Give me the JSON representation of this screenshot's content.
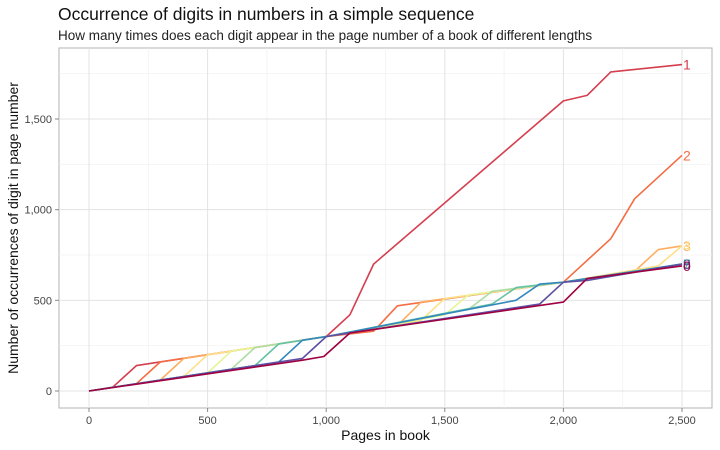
{
  "chart_data": {
    "type": "line",
    "title": "Occurrence of digits in numbers in a simple sequence",
    "subtitle": "How many times does each digit appear in the page number of a book of different lengths",
    "xlabel": "Pages in book",
    "ylabel": "Number of occurrences of digit in page number",
    "xlim": [
      0,
      2500
    ],
    "ylim": [
      0,
      1800
    ],
    "x_ticks": [
      0,
      500,
      1000,
      1500,
      2000,
      2500
    ],
    "x_tick_labels": [
      "0",
      "500",
      "1,000",
      "1,500",
      "2,000",
      "2,500"
    ],
    "y_ticks": [
      0,
      500,
      1000,
      1500
    ],
    "y_tick_labels": [
      "0",
      "500",
      "1,000",
      "1,500"
    ],
    "grid": true,
    "legend": "none (labels at line ends)",
    "series": [
      {
        "name": "1",
        "color": "#d53e4f",
        "x": [
          0,
          100,
          200,
          1000,
          1100,
          1200,
          2000,
          2100,
          2200,
          2500
        ],
        "y": [
          0,
          21,
          140,
          300,
          420,
          700,
          1600,
          1630,
          1760,
          1800
        ]
      },
      {
        "name": "2",
        "color": "#f46d43",
        "x": [
          0,
          200,
          300,
          1000,
          1200,
          1300,
          2000,
          2200,
          2300,
          2500
        ],
        "y": [
          0,
          40,
          160,
          300,
          330,
          470,
          600,
          840,
          1060,
          1300
        ]
      },
      {
        "name": "3",
        "color": "#fdae61",
        "x": [
          0,
          300,
          400,
          1000,
          1300,
          1400,
          2000,
          2300,
          2400,
          2500
        ],
        "y": [
          0,
          60,
          180,
          300,
          360,
          490,
          600,
          660,
          780,
          800
        ]
      },
      {
        "name": "4",
        "color": "#fee08b",
        "x": [
          0,
          400,
          500,
          1000,
          1400,
          1500,
          2000,
          2400,
          2500
        ],
        "y": [
          0,
          80,
          200,
          300,
          390,
          510,
          600,
          690,
          800
        ]
      },
      {
        "name": "5",
        "color": "#e6f598",
        "x": [
          0,
          500,
          600,
          1000,
          1500,
          1600,
          2000,
          2500
        ],
        "y": [
          0,
          100,
          220,
          300,
          420,
          530,
          600,
          700
        ]
      },
      {
        "name": "6",
        "color": "#abdda4",
        "x": [
          0,
          600,
          700,
          1000,
          1600,
          1700,
          2000,
          2500
        ],
        "y": [
          0,
          120,
          240,
          300,
          450,
          550,
          600,
          700
        ]
      },
      {
        "name": "7",
        "color": "#66c2a5",
        "x": [
          0,
          700,
          800,
          1000,
          1700,
          1800,
          2000,
          2500
        ],
        "y": [
          0,
          140,
          260,
          300,
          480,
          570,
          600,
          700
        ]
      },
      {
        "name": "8",
        "color": "#3288bd",
        "x": [
          0,
          800,
          900,
          1000,
          1800,
          1900,
          2000,
          2500
        ],
        "y": [
          0,
          160,
          280,
          300,
          500,
          590,
          600,
          700
        ]
      },
      {
        "name": "9",
        "color": "#5e4fa2",
        "x": [
          0,
          900,
          1000,
          1900,
          2000,
          2100,
          2500
        ],
        "y": [
          0,
          180,
          300,
          480,
          600,
          610,
          700
        ]
      },
      {
        "name": "0",
        "color": "#9e0142",
        "x": [
          0,
          900,
          990,
          1100,
          2000,
          2100,
          2500
        ],
        "y": [
          0,
          170,
          190,
          320,
          490,
          620,
          690
        ]
      }
    ]
  }
}
